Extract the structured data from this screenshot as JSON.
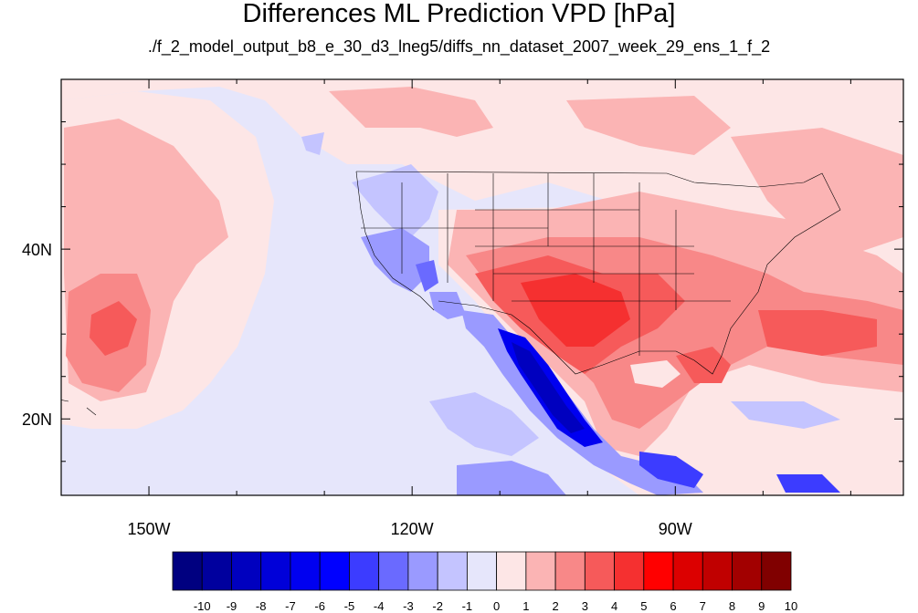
{
  "title": "Differences ML Prediction VPD [hPa]",
  "subtitle": "./f_2_model_output_b8_e_30_d3_lneg5/diffs_nn_dataset_2007_week_29_ens_1_f_2",
  "map": {
    "lon_range": [
      -160,
      -64
    ],
    "lat_range": [
      11,
      60
    ],
    "lon_ticks": [
      {
        "lon": -150,
        "label": "150W"
      },
      {
        "lon": -120,
        "label": "120W"
      },
      {
        "lon": -90,
        "label": "90W"
      }
    ],
    "lat_ticks": [
      {
        "lat": 40,
        "label": "40N"
      },
      {
        "lat": 20,
        "label": "20N"
      }
    ]
  },
  "colorbar": {
    "labels": [
      "-10",
      "-9",
      "-8",
      "-7",
      "-6",
      "-5",
      "-4",
      "-3",
      "-2",
      "-1",
      "0",
      "1",
      "2",
      "3",
      "4",
      "5",
      "6",
      "7",
      "8",
      "9",
      "10"
    ],
    "colors": [
      "#000080",
      "#00009e",
      "#0000bf",
      "#0000d9",
      "#0000f0",
      "#0000ff",
      "#3c3cff",
      "#6a6aff",
      "#9a9aff",
      "#c4c4ff",
      "#e6e6fb",
      "#fde6e6",
      "#fbb4b4",
      "#f88888",
      "#f65a5a",
      "#f53030",
      "#ff0000",
      "#dc0000",
      "#c00000",
      "#a20000",
      "#800000"
    ]
  }
}
